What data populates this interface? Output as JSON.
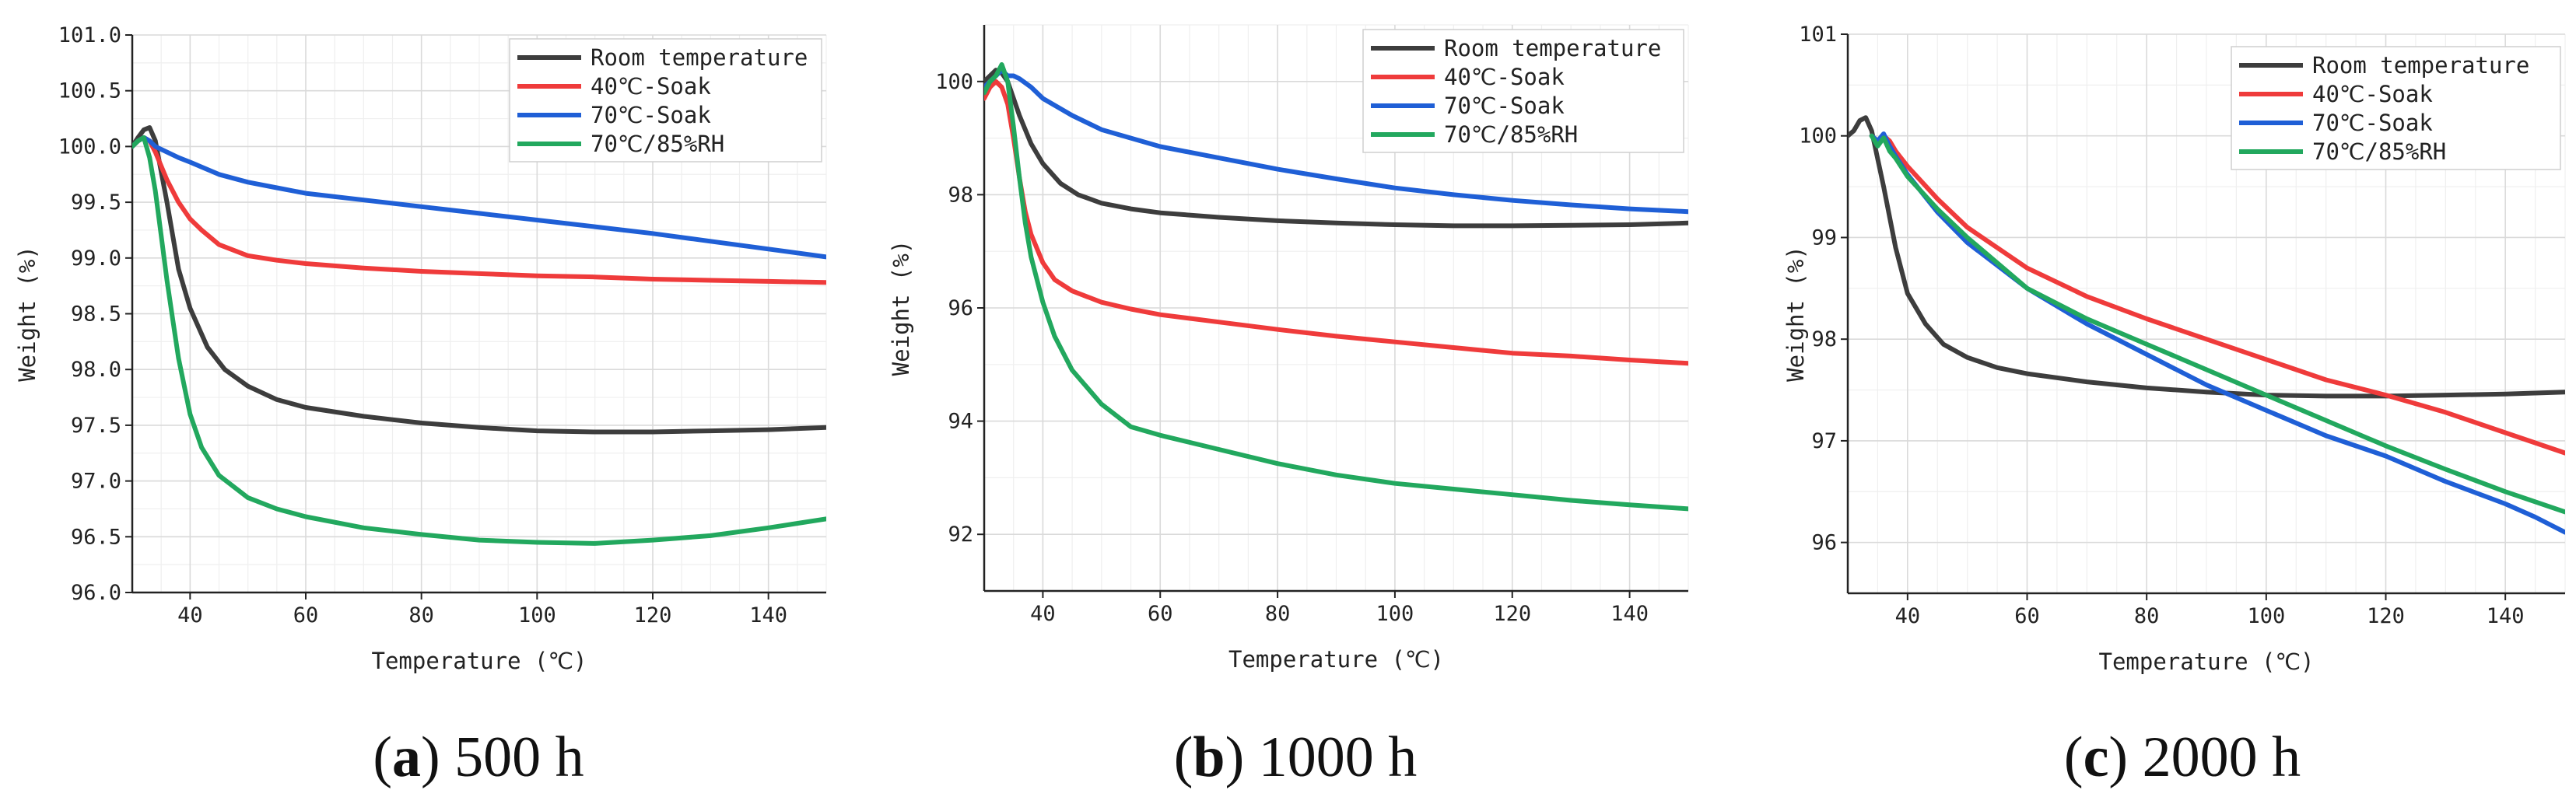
{
  "chart_data": [
    {
      "type": "line",
      "caption_letter": "a",
      "caption_text": "500 h",
      "xlabel": "Temperature (℃)",
      "ylabel": "Weight (%)",
      "xlim": [
        30,
        150
      ],
      "ylim": [
        96.0,
        101.0
      ],
      "xticks": [
        40,
        60,
        80,
        100,
        120,
        140
      ],
      "yticks": [
        96.0,
        96.5,
        97.0,
        97.5,
        98.0,
        98.5,
        99.0,
        99.5,
        100.0,
        100.5,
        101.0
      ],
      "ytick_labels": [
        "96.0",
        "96.5",
        "97.0",
        "97.5",
        "98.0",
        "98.5",
        "99.0",
        "99.5",
        "100.0",
        "100.5",
        "101.0"
      ],
      "grid": true,
      "legend_position": "top-right",
      "series": [
        {
          "name": "Room temperature",
          "color": "#3d3d3d",
          "x": [
            30,
            31,
            32,
            33,
            34,
            36,
            38,
            40,
            43,
            46,
            50,
            55,
            60,
            70,
            80,
            90,
            100,
            110,
            120,
            130,
            140,
            150
          ],
          "y": [
            100.0,
            100.08,
            100.15,
            100.17,
            100.05,
            99.5,
            98.9,
            98.55,
            98.2,
            98.0,
            97.85,
            97.73,
            97.66,
            97.58,
            97.52,
            97.48,
            97.45,
            97.44,
            97.44,
            97.45,
            97.46,
            97.48
          ]
        },
        {
          "name": "40℃-Soak",
          "color": "#ef3b3b",
          "x": [
            30,
            31,
            32,
            33,
            34,
            36,
            38,
            40,
            42,
            45,
            50,
            55,
            60,
            70,
            80,
            90,
            100,
            110,
            120,
            130,
            140,
            150
          ],
          "y": [
            100.0,
            100.05,
            100.08,
            100.05,
            99.95,
            99.7,
            99.5,
            99.35,
            99.25,
            99.12,
            99.02,
            98.98,
            98.95,
            98.91,
            98.88,
            98.86,
            98.84,
            98.83,
            98.81,
            98.8,
            98.79,
            98.78
          ]
        },
        {
          "name": "70℃-Soak",
          "color": "#1f5fd6",
          "x": [
            30,
            31,
            32,
            33,
            34,
            36,
            38,
            40,
            45,
            50,
            55,
            60,
            70,
            80,
            90,
            100,
            110,
            120,
            130,
            140,
            150
          ],
          "y": [
            100.0,
            100.05,
            100.08,
            100.05,
            100.0,
            99.95,
            99.9,
            99.86,
            99.75,
            99.68,
            99.63,
            99.58,
            99.52,
            99.46,
            99.4,
            99.34,
            99.28,
            99.22,
            99.15,
            99.08,
            99.01
          ]
        },
        {
          "name": "70℃/85%RH",
          "color": "#22a85e",
          "x": [
            30,
            31,
            32,
            33,
            34,
            35,
            36,
            37,
            38,
            40,
            42,
            45,
            50,
            55,
            60,
            70,
            80,
            90,
            100,
            110,
            120,
            130,
            140,
            150
          ],
          "y": [
            100.0,
            100.05,
            100.08,
            99.9,
            99.6,
            99.2,
            98.8,
            98.45,
            98.1,
            97.6,
            97.3,
            97.05,
            96.85,
            96.75,
            96.68,
            96.58,
            96.52,
            96.47,
            96.45,
            96.44,
            96.47,
            96.51,
            96.58,
            96.66
          ]
        }
      ]
    },
    {
      "type": "line",
      "caption_letter": "b",
      "caption_text": "1000 h",
      "xlabel": "Temperature (℃)",
      "ylabel": "Weight (%)",
      "xlim": [
        30,
        150
      ],
      "ylim": [
        91.0,
        101.0
      ],
      "xticks": [
        40,
        60,
        80,
        100,
        120,
        140
      ],
      "yticks": [
        92,
        94,
        96,
        98,
        100
      ],
      "ytick_labels": [
        "92",
        "94",
        "96",
        "98",
        "100"
      ],
      "grid": true,
      "legend_position": "top-right",
      "series": [
        {
          "name": "Room temperature",
          "color": "#3d3d3d",
          "x": [
            30,
            31,
            32,
            33,
            34,
            36,
            38,
            40,
            43,
            46,
            50,
            55,
            60,
            70,
            80,
            90,
            100,
            110,
            120,
            130,
            140,
            150
          ],
          "y": [
            100.0,
            100.1,
            100.2,
            100.15,
            100.0,
            99.4,
            98.9,
            98.55,
            98.2,
            98.0,
            97.85,
            97.75,
            97.68,
            97.6,
            97.54,
            97.5,
            97.47,
            97.45,
            97.45,
            97.46,
            97.47,
            97.5
          ]
        },
        {
          "name": "40℃-Soak",
          "color": "#ef3b3b",
          "x": [
            30,
            31,
            32,
            33,
            34,
            35,
            36,
            37,
            38,
            40,
            42,
            45,
            50,
            55,
            60,
            70,
            80,
            90,
            100,
            110,
            120,
            130,
            140,
            150
          ],
          "y": [
            99.7,
            99.9,
            100.0,
            99.9,
            99.6,
            99.0,
            98.3,
            97.7,
            97.3,
            96.8,
            96.5,
            96.3,
            96.1,
            95.98,
            95.88,
            95.75,
            95.62,
            95.5,
            95.4,
            95.3,
            95.2,
            95.15,
            95.08,
            95.02
          ]
        },
        {
          "name": "70℃-Soak",
          "color": "#1f5fd6",
          "x": [
            30,
            31,
            32,
            33,
            34,
            35,
            36,
            38,
            40,
            45,
            50,
            55,
            60,
            70,
            80,
            90,
            100,
            110,
            120,
            130,
            140,
            150
          ],
          "y": [
            99.9,
            100.0,
            100.1,
            100.2,
            100.1,
            100.1,
            100.05,
            99.9,
            99.7,
            99.4,
            99.15,
            99.0,
            98.85,
            98.65,
            98.45,
            98.28,
            98.12,
            98.0,
            97.9,
            97.82,
            97.75,
            97.7
          ]
        },
        {
          "name": "70℃/85%RH",
          "color": "#22a85e",
          "x": [
            30,
            31,
            32,
            33,
            34,
            35,
            36,
            37,
            38,
            40,
            42,
            45,
            50,
            55,
            60,
            70,
            80,
            90,
            100,
            110,
            120,
            130,
            140,
            150
          ],
          "y": [
            99.8,
            100.0,
            100.1,
            100.3,
            100.0,
            99.2,
            98.3,
            97.5,
            96.9,
            96.1,
            95.5,
            94.9,
            94.3,
            93.9,
            93.75,
            93.5,
            93.25,
            93.05,
            92.9,
            92.8,
            92.7,
            92.6,
            92.52,
            92.45
          ]
        }
      ]
    },
    {
      "type": "line",
      "caption_letter": "c",
      "caption_text": "2000 h",
      "xlabel": "Temperature (℃)",
      "ylabel": "Weight (%)",
      "xlim": [
        30,
        150
      ],
      "ylim": [
        95.5,
        101.0
      ],
      "xticks": [
        40,
        60,
        80,
        100,
        120,
        140
      ],
      "yticks": [
        96,
        97,
        98,
        99,
        100,
        101
      ],
      "ytick_labels": [
        "96",
        "97",
        "98",
        "99",
        "100",
        "101"
      ],
      "grid": true,
      "legend_position": "top-right",
      "series": [
        {
          "name": "Room temperature",
          "color": "#3d3d3d",
          "x": [
            30,
            31,
            32,
            33,
            34,
            36,
            38,
            40,
            43,
            46,
            50,
            55,
            60,
            70,
            80,
            90,
            100,
            110,
            120,
            130,
            140,
            150
          ],
          "y": [
            100.0,
            100.05,
            100.15,
            100.18,
            100.05,
            99.5,
            98.9,
            98.45,
            98.15,
            97.95,
            97.82,
            97.72,
            97.66,
            97.58,
            97.52,
            97.48,
            97.45,
            97.44,
            97.44,
            97.45,
            97.46,
            97.48
          ]
        },
        {
          "name": "40℃-Soak",
          "color": "#ef3b3b",
          "x": [
            34,
            35,
            36,
            37,
            38,
            40,
            45,
            50,
            60,
            70,
            80,
            90,
            100,
            110,
            120,
            130,
            140,
            150
          ],
          "y": [
            100.0,
            99.95,
            100.0,
            99.95,
            99.85,
            99.7,
            99.38,
            99.1,
            98.7,
            98.42,
            98.2,
            98.0,
            97.8,
            97.6,
            97.45,
            97.28,
            97.08,
            96.88
          ]
        },
        {
          "name": "70℃-Soak",
          "color": "#1f5fd6",
          "x": [
            34,
            35,
            36,
            37,
            38,
            40,
            45,
            50,
            60,
            70,
            80,
            90,
            100,
            110,
            120,
            130,
            140,
            145,
            150
          ],
          "y": [
            100.0,
            99.95,
            100.02,
            99.9,
            99.8,
            99.62,
            99.25,
            98.95,
            98.5,
            98.15,
            97.85,
            97.55,
            97.3,
            97.05,
            96.85,
            96.6,
            96.38,
            96.25,
            96.1
          ]
        },
        {
          "name": "70℃/85%RH",
          "color": "#22a85e",
          "x": [
            34,
            35,
            36,
            37,
            38,
            40,
            45,
            50,
            60,
            70,
            80,
            90,
            100,
            110,
            120,
            130,
            140,
            150
          ],
          "y": [
            100.0,
            99.9,
            99.98,
            99.85,
            99.78,
            99.6,
            99.28,
            99.0,
            98.5,
            98.2,
            97.95,
            97.7,
            97.45,
            97.2,
            96.95,
            96.72,
            96.5,
            96.3
          ]
        }
      ]
    }
  ]
}
